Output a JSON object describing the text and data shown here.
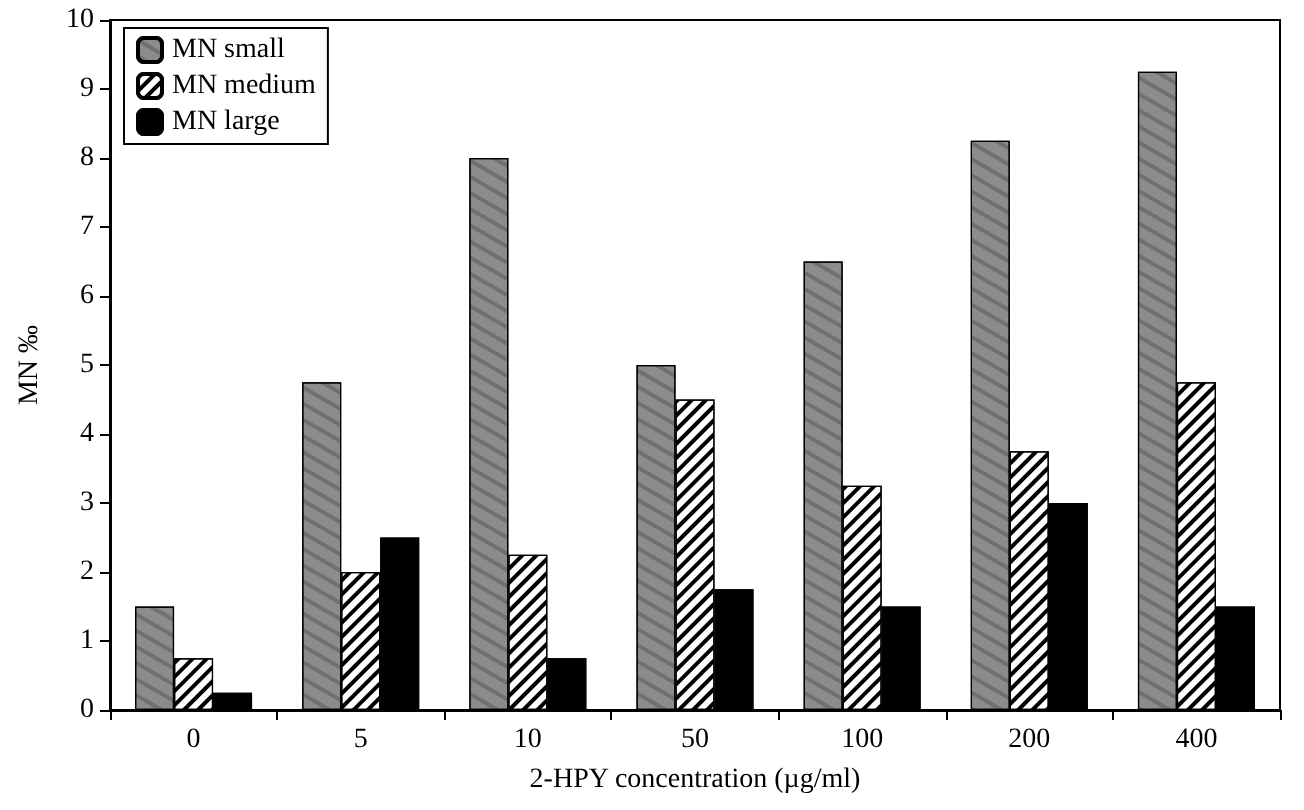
{
  "chart_data": {
    "type": "bar",
    "xlabel": "2-HPY concentration (µg/ml)",
    "ylabel": "MN ‰",
    "categories": [
      "0",
      "5",
      "10",
      "50",
      "100",
      "200",
      "400"
    ],
    "series": [
      {
        "name": "MN small",
        "color": "#8c8c8c",
        "values": [
          1.5,
          4.75,
          8,
          5,
          6.5,
          8.25,
          9.25
        ]
      },
      {
        "name": "MN medium",
        "color": "#ffffff",
        "values": [
          0.75,
          2,
          2.25,
          4.5,
          3.25,
          3.75,
          4.75
        ]
      },
      {
        "name": "MN large",
        "color": "#000000",
        "values": [
          0.25,
          2.5,
          0.75,
          1.75,
          1.5,
          3,
          1.5
        ]
      }
    ],
    "ylim": [
      0,
      10
    ],
    "yticks": [
      0,
      1,
      2,
      3,
      4,
      5,
      6,
      7,
      8,
      9,
      10
    ],
    "grid": false,
    "legend": "top left"
  }
}
